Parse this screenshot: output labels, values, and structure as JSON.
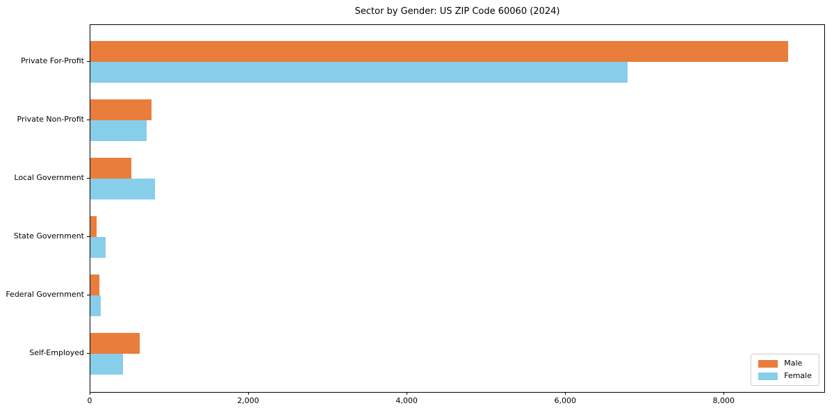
{
  "figure": {
    "background_color": "#ffffff",
    "text_color": "#000000"
  },
  "chart_data": {
    "type": "bar",
    "orientation": "horizontal",
    "title": "Sector by Gender: US ZIP Code 60060 (2024)",
    "xlabel": "",
    "ylabel": "",
    "grid": false,
    "categories": [
      "Private For-Profit",
      "Private Non-Profit",
      "Local Government",
      "State Government",
      "Federal Government",
      "Self-Employed"
    ],
    "series": [
      {
        "name": "Male",
        "color": "#e87d3c",
        "values": [
          8800,
          770,
          515,
          80,
          110,
          620
        ]
      },
      {
        "name": "Female",
        "color": "#87ceeb",
        "values": [
          6780,
          710,
          815,
          195,
          130,
          410
        ]
      }
    ],
    "xlim": [
      0,
      9260
    ],
    "xticks": [
      {
        "value": 0,
        "label": "0"
      },
      {
        "value": 2000,
        "label": "2,000"
      },
      {
        "value": 4000,
        "label": "4,000"
      },
      {
        "value": 6000,
        "label": "6,000"
      },
      {
        "value": 8000,
        "label": "8,000"
      }
    ],
    "legend": {
      "position": "lower right",
      "entries": [
        "Male",
        "Female"
      ]
    }
  }
}
